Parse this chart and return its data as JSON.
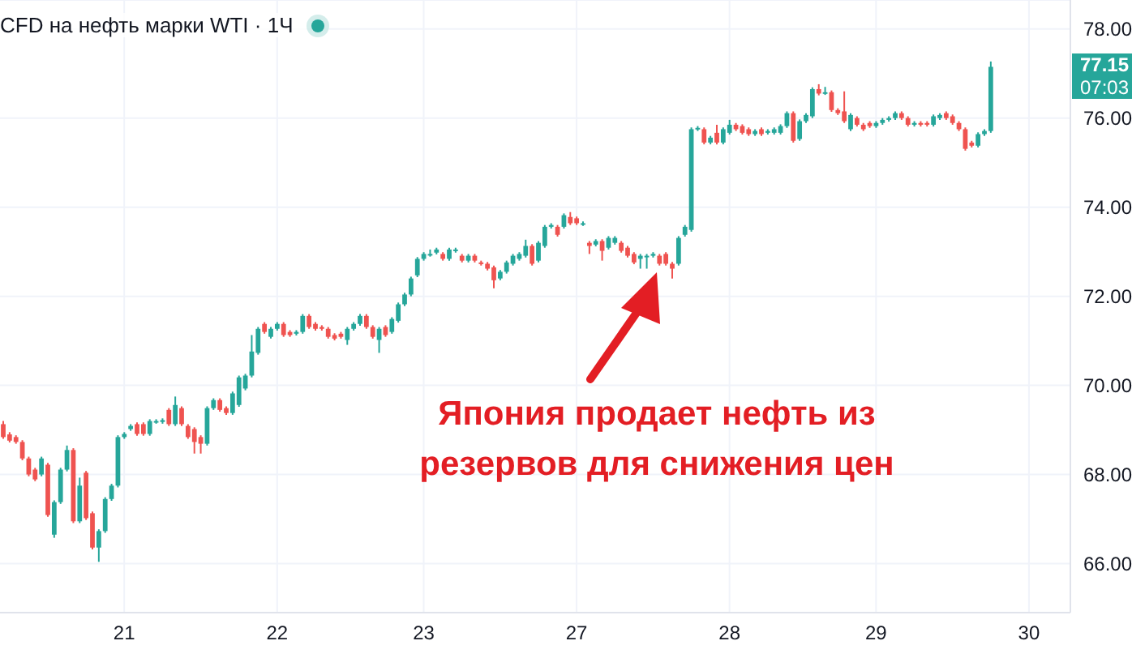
{
  "chart_data": {
    "type": "candlestick",
    "title": "CFD на нефть марки WTI · 1Ч",
    "categories": [
      null,
      null,
      null,
      null,
      null,
      null,
      null,
      null,
      null,
      null,
      null,
      null,
      null,
      null,
      null,
      null,
      null,
      null,
      null,
      "21",
      null,
      null,
      null,
      null,
      null,
      null,
      null,
      null,
      null,
      null,
      null,
      null,
      null,
      null,
      null,
      null,
      null,
      null,
      null,
      null,
      null,
      null,
      null,
      "22",
      null,
      null,
      null,
      null,
      null,
      null,
      null,
      null,
      null,
      null,
      null,
      null,
      null,
      null,
      null,
      null,
      null,
      null,
      null,
      null,
      null,
      null,
      "23",
      null,
      null,
      null,
      null,
      null,
      null,
      null,
      null,
      null,
      null,
      null,
      null,
      null,
      null,
      null,
      null,
      null,
      null,
      null,
      null,
      null,
      null,
      null,
      "27",
      null,
      null,
      null,
      null,
      null,
      null,
      null,
      null,
      null,
      null,
      null,
      null,
      null,
      null,
      null,
      null,
      null,
      null,
      null,
      null,
      null,
      null,
      null,
      "28",
      null,
      null,
      null,
      null,
      null,
      null,
      null,
      null,
      null,
      null,
      null,
      null,
      null,
      null,
      null,
      null,
      null,
      null,
      null,
      null,
      null,
      null,
      "29",
      null,
      null,
      null,
      null,
      null,
      null,
      null,
      null,
      null,
      null,
      null,
      null,
      null,
      null,
      null,
      null,
      null,
      null,
      null,
      null,
      null,
      null,
      null,
      "30",
      null,
      null,
      null,
      null,
      null,
      null
    ],
    "ohlc": [
      [
        69.13,
        69.2,
        68.8,
        68.84
      ],
      [
        68.9,
        68.95,
        68.72,
        68.76
      ],
      [
        68.84,
        68.88,
        68.69,
        68.73
      ],
      [
        68.73,
        68.77,
        68.32,
        68.36
      ],
      [
        68.36,
        68.4,
        67.96,
        68.0
      ],
      [
        68.11,
        68.15,
        67.85,
        67.89
      ],
      [
        68.0,
        68.4,
        67.96,
        68.36
      ],
      [
        68.22,
        68.26,
        67.05,
        67.09
      ],
      [
        66.65,
        67.42,
        66.58,
        67.38
      ],
      [
        67.38,
        68.15,
        67.34,
        68.11
      ],
      [
        68.11,
        68.65,
        68.07,
        68.55
      ],
      [
        68.55,
        68.59,
        66.91,
        66.95
      ],
      [
        66.95,
        67.93,
        66.91,
        67.75
      ],
      [
        68.04,
        68.08,
        66.98,
        67.02
      ],
      [
        67.13,
        67.17,
        66.32,
        66.36
      ],
      [
        66.36,
        66.77,
        66.04,
        66.73
      ],
      [
        66.73,
        67.49,
        66.69,
        67.45
      ],
      [
        67.45,
        67.79,
        67.41,
        67.75
      ],
      [
        67.75,
        68.88,
        67.71,
        68.84
      ],
      [
        68.84,
        68.95,
        68.8,
        68.91
      ],
      [
        69.02,
        69.13,
        68.98,
        69.09
      ],
      [
        69.13,
        69.17,
        68.87,
        68.91
      ],
      [
        69.13,
        69.17,
        68.87,
        68.91
      ],
      [
        68.91,
        69.24,
        68.87,
        69.2
      ],
      [
        69.18,
        69.24,
        69.14,
        69.2
      ],
      [
        69.18,
        69.26,
        69.14,
        69.22
      ],
      [
        69.45,
        69.49,
        69.09,
        69.13
      ],
      [
        69.13,
        69.75,
        69.09,
        69.56
      ],
      [
        69.49,
        69.53,
        69.09,
        69.13
      ],
      [
        69.09,
        69.13,
        68.8,
        68.84
      ],
      [
        69.02,
        69.06,
        68.47,
        68.73
      ],
      [
        68.84,
        68.88,
        68.47,
        68.69
      ],
      [
        68.69,
        69.53,
        68.65,
        69.49
      ],
      [
        69.49,
        69.71,
        69.45,
        69.67
      ],
      [
        69.67,
        69.71,
        69.41,
        69.45
      ],
      [
        69.49,
        69.53,
        69.34,
        69.38
      ],
      [
        69.38,
        69.86,
        69.34,
        69.82
      ],
      [
        69.56,
        70.22,
        69.52,
        70.18
      ],
      [
        69.93,
        70.26,
        69.89,
        70.22
      ],
      [
        70.22,
        71.13,
        70.18,
        70.76
      ],
      [
        70.73,
        71.31,
        70.69,
        71.27
      ],
      [
        71.38,
        71.42,
        71.16,
        71.2
      ],
      [
        71.09,
        71.31,
        71.05,
        71.27
      ],
      [
        71.27,
        71.42,
        71.23,
        71.38
      ],
      [
        71.38,
        71.42,
        71.09,
        71.13
      ],
      [
        71.2,
        71.24,
        71.09,
        71.13
      ],
      [
        71.16,
        71.24,
        71.12,
        71.2
      ],
      [
        71.2,
        71.6,
        71.16,
        71.56
      ],
      [
        71.56,
        71.6,
        71.27,
        71.31
      ],
      [
        71.38,
        71.42,
        71.23,
        71.27
      ],
      [
        71.31,
        71.35,
        71.23,
        71.27
      ],
      [
        71.27,
        71.31,
        71.05,
        71.09
      ],
      [
        71.13,
        71.17,
        71.01,
        71.05
      ],
      [
        71.16,
        71.2,
        71.05,
        71.09
      ],
      [
        71.02,
        71.31,
        70.91,
        71.27
      ],
      [
        71.27,
        71.42,
        71.23,
        71.38
      ],
      [
        71.38,
        71.6,
        71.34,
        71.56
      ],
      [
        71.56,
        71.6,
        71.27,
        71.31
      ],
      [
        71.31,
        71.35,
        71.05,
        71.09
      ],
      [
        71.02,
        71.31,
        70.73,
        71.27
      ],
      [
        71.31,
        71.35,
        71.09,
        71.13
      ],
      [
        71.2,
        71.53,
        71.16,
        71.49
      ],
      [
        71.45,
        71.86,
        71.41,
        71.82
      ],
      [
        71.82,
        72.08,
        71.78,
        72.04
      ],
      [
        72.04,
        72.44,
        72.0,
        72.4
      ],
      [
        72.47,
        72.88,
        72.43,
        72.84
      ],
      [
        72.84,
        72.99,
        72.8,
        72.95
      ],
      [
        72.93,
        73.05,
        72.89,
        72.95
      ],
      [
        72.98,
        73.09,
        72.94,
        73.05
      ],
      [
        72.95,
        72.99,
        72.8,
        72.84
      ],
      [
        72.84,
        73.09,
        72.8,
        73.05
      ],
      [
        73.02,
        73.09,
        72.98,
        73.05
      ],
      [
        72.91,
        72.95,
        72.76,
        72.8
      ],
      [
        72.8,
        72.95,
        72.76,
        72.91
      ],
      [
        72.91,
        72.95,
        72.76,
        72.8
      ],
      [
        72.76,
        72.8,
        72.69,
        72.73
      ],
      [
        72.73,
        72.77,
        72.58,
        72.62
      ],
      [
        72.65,
        72.69,
        72.18,
        72.36
      ],
      [
        72.4,
        72.59,
        72.36,
        72.55
      ],
      [
        72.55,
        72.8,
        72.51,
        72.76
      ],
      [
        72.73,
        72.95,
        72.69,
        72.91
      ],
      [
        72.84,
        72.99,
        72.8,
        72.95
      ],
      [
        72.91,
        73.27,
        72.87,
        73.13
      ],
      [
        73.13,
        73.17,
        72.69,
        72.73
      ],
      [
        72.8,
        73.24,
        72.76,
        73.2
      ],
      [
        73.13,
        73.6,
        73.09,
        73.56
      ],
      [
        73.56,
        73.64,
        73.52,
        73.6
      ],
      [
        73.56,
        73.6,
        73.34,
        73.38
      ],
      [
        73.56,
        73.86,
        73.52,
        73.82
      ],
      [
        73.78,
        73.89,
        73.6,
        73.64
      ],
      [
        73.75,
        73.79,
        73.6,
        73.64
      ],
      [
        73.62,
        73.68,
        73.58,
        73.64
      ],
      [
        73.2,
        73.24,
        72.95,
        73.13
      ],
      [
        73.16,
        73.28,
        73.12,
        73.24
      ],
      [
        73.24,
        73.28,
        72.8,
        73.02
      ],
      [
        73.09,
        73.35,
        73.05,
        73.31
      ],
      [
        73.2,
        73.35,
        73.16,
        73.31
      ],
      [
        73.2,
        73.24,
        72.98,
        73.02
      ],
      [
        73.09,
        73.13,
        72.87,
        72.91
      ],
      [
        72.95,
        72.99,
        72.72,
        72.76
      ],
      [
        72.84,
        72.95,
        72.62,
        72.91
      ],
      [
        72.9,
        72.95,
        72.62,
        72.91
      ],
      [
        72.91,
        72.99,
        72.87,
        72.95
      ],
      [
        72.91,
        72.95,
        72.69,
        72.73
      ],
      [
        72.95,
        72.99,
        72.69,
        72.73
      ],
      [
        72.73,
        72.77,
        72.4,
        72.62
      ],
      [
        72.73,
        73.35,
        72.69,
        73.31
      ],
      [
        73.38,
        73.6,
        73.34,
        73.56
      ],
      [
        73.49,
        75.79,
        73.45,
        75.75
      ],
      [
        75.75,
        75.82,
        75.71,
        75.78
      ],
      [
        75.75,
        75.79,
        75.41,
        75.45
      ],
      [
        75.45,
        75.6,
        75.41,
        75.56
      ],
      [
        75.67,
        75.85,
        75.41,
        75.45
      ],
      [
        75.45,
        75.79,
        75.41,
        75.75
      ],
      [
        75.67,
        75.96,
        75.63,
        75.85
      ],
      [
        75.85,
        75.89,
        75.71,
        75.75
      ],
      [
        75.82,
        75.86,
        75.63,
        75.67
      ],
      [
        75.75,
        75.79,
        75.6,
        75.64
      ],
      [
        75.64,
        75.75,
        75.6,
        75.71
      ],
      [
        75.75,
        75.79,
        75.6,
        75.64
      ],
      [
        75.67,
        75.75,
        75.63,
        75.71
      ],
      [
        75.67,
        75.79,
        75.63,
        75.75
      ],
      [
        75.67,
        75.86,
        75.63,
        75.82
      ],
      [
        75.82,
        76.15,
        75.78,
        76.11
      ],
      [
        76.11,
        76.15,
        75.45,
        75.49
      ],
      [
        75.53,
        75.97,
        75.49,
        75.93
      ],
      [
        75.93,
        76.11,
        75.89,
        76.07
      ],
      [
        76.04,
        76.69,
        76.0,
        76.65
      ],
      [
        76.65,
        76.76,
        76.51,
        76.55
      ],
      [
        76.56,
        76.7,
        76.52,
        76.58
      ],
      [
        76.58,
        76.62,
        76.14,
        76.18
      ],
      [
        76.18,
        76.22,
        76.07,
        76.11
      ],
      [
        76.15,
        76.6,
        75.89,
        75.93
      ],
      [
        75.75,
        76.11,
        75.71,
        76.07
      ],
      [
        76.0,
        76.04,
        75.81,
        75.85
      ],
      [
        75.85,
        75.89,
        75.71,
        75.75
      ],
      [
        75.89,
        75.93,
        75.78,
        75.82
      ],
      [
        75.82,
        75.93,
        75.78,
        75.89
      ],
      [
        75.89,
        76.0,
        75.85,
        75.96
      ],
      [
        75.96,
        76.04,
        75.92,
        76.0
      ],
      [
        76.0,
        76.15,
        75.96,
        76.11
      ],
      [
        76.11,
        76.15,
        75.96,
        76.0
      ],
      [
        76.0,
        76.04,
        75.81,
        75.85
      ],
      [
        75.85,
        75.93,
        75.81,
        75.89
      ],
      [
        75.89,
        75.93,
        75.81,
        75.85
      ],
      [
        75.89,
        75.93,
        75.81,
        75.85
      ],
      [
        75.85,
        76.08,
        75.81,
        76.04
      ],
      [
        76.0,
        76.11,
        75.96,
        76.07
      ],
      [
        76.11,
        76.15,
        75.96,
        76.0
      ],
      [
        76.04,
        76.08,
        75.85,
        75.89
      ],
      [
        75.89,
        75.93,
        75.71,
        75.75
      ],
      [
        75.75,
        75.79,
        75.27,
        75.31
      ],
      [
        75.45,
        75.49,
        75.34,
        75.38
      ],
      [
        75.38,
        75.68,
        75.34,
        75.64
      ],
      [
        75.64,
        75.75,
        75.6,
        75.71
      ],
      [
        75.71,
        77.27,
        75.67,
        77.15
      ],
      null,
      null,
      null,
      null,
      null,
      null,
      null,
      null,
      null,
      null,
      null,
      null
    ],
    "ylim": [
      64.9,
      78.65
    ],
    "yticks": [
      {
        "value": 66,
        "label": "66.00"
      },
      {
        "value": 68,
        "label": "68.00"
      },
      {
        "value": 70,
        "label": "70.00"
      },
      {
        "value": 72,
        "label": "72.00"
      },
      {
        "value": 74,
        "label": "74.00"
      },
      {
        "value": 76,
        "label": "76.00"
      },
      {
        "value": 78,
        "label": "78.00"
      }
    ],
    "grid": true,
    "annotations": [
      "Япония продает нефть из резервов для снижения цен",
      "77.15",
      "07:03"
    ]
  }
}
